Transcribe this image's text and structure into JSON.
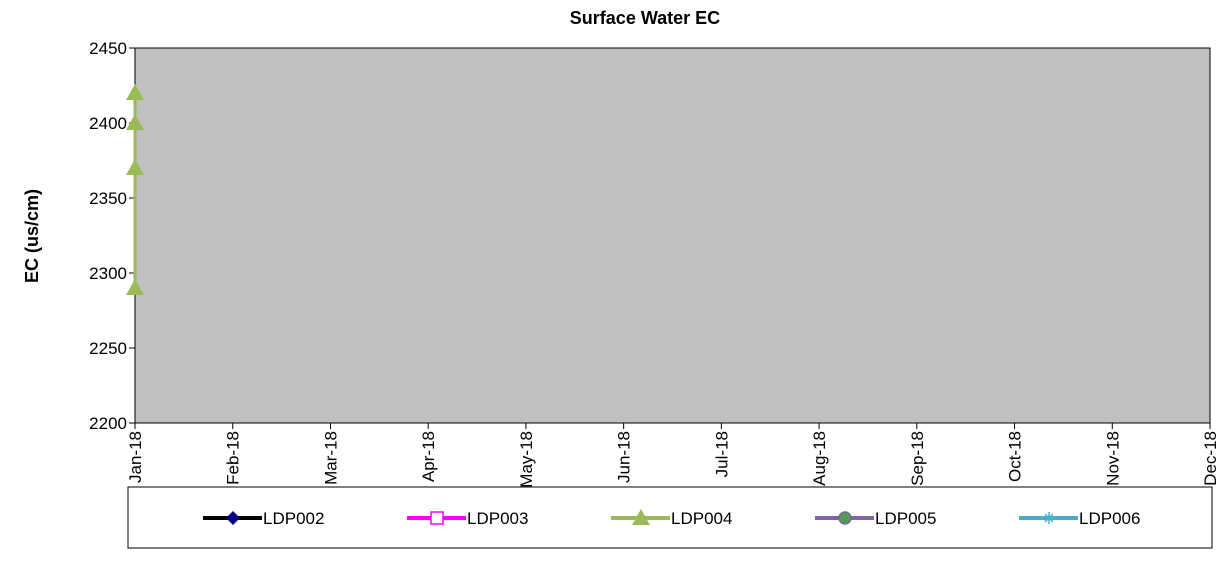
{
  "chart_data": {
    "type": "line",
    "title": "Surface Water EC",
    "y_label": "EC (us/cm)",
    "x": [
      "Jan-18",
      "Jan-18",
      "Jan-18",
      "Jan-18"
    ],
    "xticks": [
      "Jan-18",
      "Feb-18",
      "Mar-18",
      "Apr-18",
      "May-18",
      "Jun-18",
      "Jul-18",
      "Aug-18",
      "Sep-18",
      "Oct-18",
      "Nov-18",
      "Dec-18"
    ],
    "ylim": [
      2200,
      2450
    ],
    "yticks": [
      2200,
      2250,
      2300,
      2350,
      2400,
      2450
    ],
    "plot_background": "#c0c0c0",
    "series": [
      {
        "name": "LDP002",
        "color": "#000000",
        "marker": "diamond",
        "marker_color": "#000080",
        "values": [
          null,
          null,
          null,
          null
        ]
      },
      {
        "name": "LDP003",
        "color": "#ff00ff",
        "marker": "square",
        "marker_color": "#ffffff",
        "values": [
          null,
          null,
          null,
          null
        ]
      },
      {
        "name": "LDP004",
        "color": "#9bbb59",
        "marker": "triangle",
        "marker_color": "#9bbb59",
        "values": [
          2420,
          2400,
          2370,
          2290
        ]
      },
      {
        "name": "LDP005",
        "color": "#8064a2",
        "marker": "circle",
        "marker_color": "#4f9f4f",
        "values": [
          null,
          null,
          null,
          null
        ]
      },
      {
        "name": "LDP006",
        "color": "#4bacc6",
        "marker": "star",
        "marker_color": "#4bacc6",
        "values": [
          null,
          null,
          null,
          null
        ]
      }
    ]
  }
}
